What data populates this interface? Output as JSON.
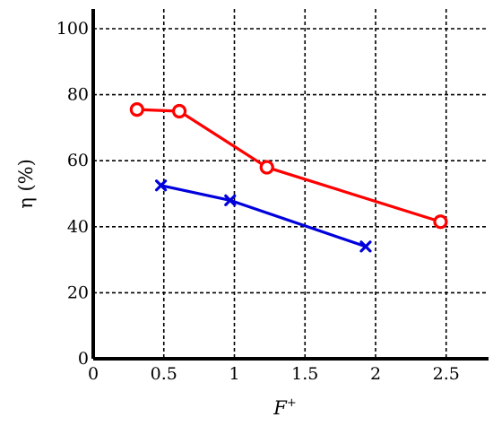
{
  "chart_data": {
    "type": "line",
    "title": "",
    "xlabel": "F",
    "xlabel_superscript": "+",
    "ylabel": "η (%)",
    "xlim": [
      0,
      2.8
    ],
    "ylim": [
      0,
      100
    ],
    "xticks": [
      0,
      0.5,
      1,
      1.5,
      2,
      2.5
    ],
    "xtick_labels": [
      "0",
      "0.5",
      "1",
      "1.5",
      "2",
      "2.5"
    ],
    "yticks": [
      0,
      20,
      40,
      60,
      80,
      100
    ],
    "ytick_labels": [
      "0",
      "20",
      "40",
      "60",
      "80",
      "100"
    ],
    "grid": true,
    "legend": "none",
    "series": [
      {
        "color": "#ff0000",
        "marker": "circle",
        "x": [
          0.31,
          0.61,
          1.23,
          2.46
        ],
        "y": [
          75.5,
          75,
          58,
          41.5
        ]
      },
      {
        "color": "#0000dd",
        "marker": "x",
        "x": [
          0.48,
          0.97,
          1.93
        ],
        "y": [
          52.5,
          48,
          34
        ]
      }
    ]
  }
}
